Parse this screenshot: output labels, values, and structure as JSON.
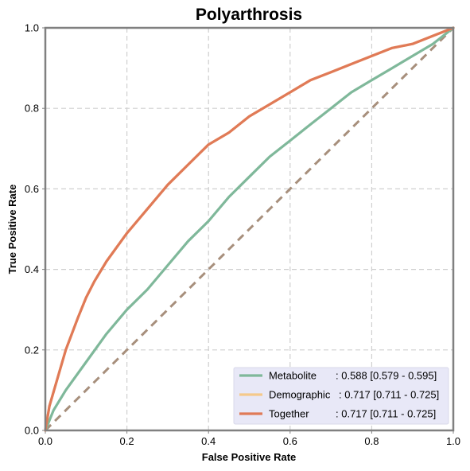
{
  "chart_data": {
    "type": "line",
    "title": "Polyarthrosis",
    "xlabel": "False Positive Rate",
    "ylabel": "True Positive Rate",
    "xlim": [
      0,
      1
    ],
    "ylim": [
      0,
      1
    ],
    "xticks": [
      "0.0",
      "0.2",
      "0.4",
      "0.6",
      "0.8",
      "1.0"
    ],
    "yticks": [
      "0.0",
      "0.2",
      "0.4",
      "0.6",
      "0.8",
      "1.0"
    ],
    "grid": true,
    "legend_position": "bottom-right",
    "series": [
      {
        "name": "Metabolite",
        "label": ": 0.588 [0.579 - 0.595]",
        "color": "#7fb89a",
        "style": "solid",
        "x": [
          0,
          0.02,
          0.05,
          0.1,
          0.15,
          0.2,
          0.25,
          0.3,
          0.35,
          0.4,
          0.45,
          0.5,
          0.55,
          0.6,
          0.65,
          0.7,
          0.75,
          0.8,
          0.85,
          0.9,
          0.95,
          1.0
        ],
        "y": [
          0,
          0.05,
          0.1,
          0.17,
          0.24,
          0.3,
          0.35,
          0.41,
          0.47,
          0.52,
          0.58,
          0.63,
          0.68,
          0.72,
          0.76,
          0.8,
          0.84,
          0.87,
          0.9,
          0.93,
          0.96,
          1.0
        ]
      },
      {
        "name": "Demographic",
        "label": ": 0.717 [0.711 - 0.725]",
        "color": "#f5c98b",
        "style": "solid",
        "x": [
          0,
          0.01,
          0.03,
          0.05,
          0.08,
          0.1,
          0.12,
          0.15,
          0.2,
          0.25,
          0.3,
          0.35,
          0.4,
          0.45,
          0.5,
          0.55,
          0.6,
          0.65,
          0.7,
          0.75,
          0.8,
          0.85,
          0.9,
          0.95,
          1.0
        ],
        "y": [
          0,
          0.06,
          0.13,
          0.2,
          0.28,
          0.33,
          0.37,
          0.42,
          0.49,
          0.55,
          0.61,
          0.66,
          0.71,
          0.74,
          0.78,
          0.81,
          0.84,
          0.87,
          0.89,
          0.91,
          0.93,
          0.95,
          0.96,
          0.98,
          1.0
        ]
      },
      {
        "name": "Together",
        "label": ": 0.717 [0.711 - 0.725]",
        "color": "#e07a57",
        "style": "solid",
        "x": [
          0,
          0.01,
          0.03,
          0.05,
          0.08,
          0.1,
          0.12,
          0.15,
          0.2,
          0.25,
          0.3,
          0.35,
          0.4,
          0.45,
          0.5,
          0.55,
          0.6,
          0.65,
          0.7,
          0.75,
          0.8,
          0.85,
          0.9,
          0.95,
          1.0
        ],
        "y": [
          0,
          0.06,
          0.13,
          0.2,
          0.28,
          0.33,
          0.37,
          0.42,
          0.49,
          0.55,
          0.61,
          0.66,
          0.71,
          0.74,
          0.78,
          0.81,
          0.84,
          0.87,
          0.89,
          0.91,
          0.93,
          0.95,
          0.96,
          0.98,
          1.0
        ]
      },
      {
        "name": "",
        "color": "#a78f7c",
        "style": "dashed",
        "x": [
          0,
          1
        ],
        "y": [
          0,
          1
        ]
      }
    ]
  }
}
